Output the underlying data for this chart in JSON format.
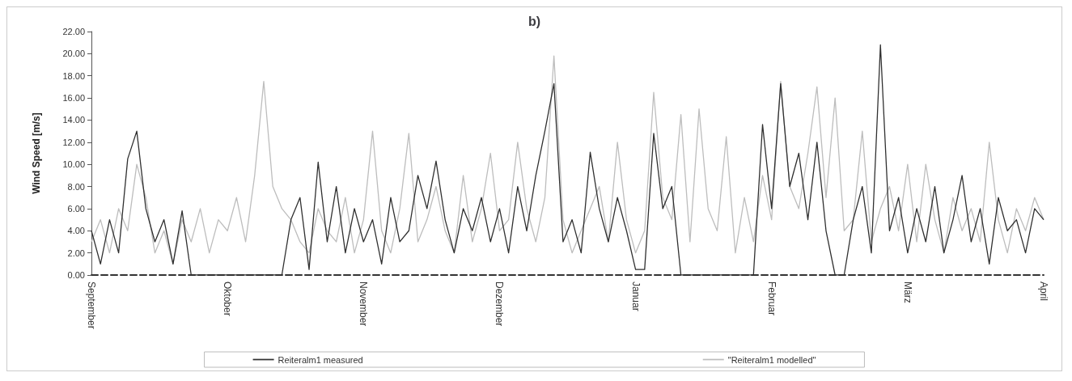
{
  "chart_data": {
    "type": "line",
    "title": "b)",
    "ylabel": "Wind Speed [m/s]",
    "categories": [
      "September",
      null,
      null,
      null,
      null,
      null,
      null,
      null,
      null,
      null,
      null,
      null,
      null,
      null,
      null,
      "Oktober",
      null,
      null,
      null,
      null,
      null,
      null,
      null,
      null,
      null,
      null,
      null,
      null,
      null,
      null,
      "November",
      null,
      null,
      null,
      null,
      null,
      null,
      null,
      null,
      null,
      null,
      null,
      null,
      null,
      null,
      "Dezember",
      null,
      null,
      null,
      null,
      null,
      null,
      null,
      null,
      null,
      null,
      null,
      null,
      null,
      null,
      "Januar",
      null,
      null,
      null,
      null,
      null,
      null,
      null,
      null,
      null,
      null,
      null,
      null,
      null,
      null,
      "Februar",
      null,
      null,
      null,
      null,
      null,
      null,
      null,
      null,
      null,
      null,
      null,
      null,
      null,
      null,
      "März",
      null,
      null,
      null,
      null,
      null,
      null,
      null,
      null,
      null,
      null,
      null,
      null,
      null,
      null,
      "April"
    ],
    "series": [
      {
        "name": "Reiteralm1 measured",
        "color": "#303030",
        "values": [
          4,
          1,
          5,
          2,
          10.5,
          13,
          6,
          3,
          5,
          1,
          5.8,
          0,
          0,
          0,
          0,
          0,
          0,
          0,
          0,
          0,
          0,
          0,
          5,
          7,
          0.5,
          10.2,
          3,
          8,
          2,
          6,
          3,
          5,
          1,
          7,
          3,
          4,
          9,
          6,
          10.3,
          5,
          2,
          6,
          4,
          7,
          3,
          6,
          2,
          8,
          4,
          9,
          13,
          17.3,
          3,
          5,
          2,
          11.1,
          6,
          3,
          7,
          4,
          0.5,
          0.5,
          12.8,
          6,
          8,
          0,
          0,
          0,
          0,
          0,
          0,
          0,
          0,
          0,
          13.6,
          6,
          17.3,
          8,
          11,
          5,
          12,
          4,
          0,
          0,
          5,
          8,
          2,
          20.8,
          4,
          7,
          2,
          6,
          3,
          8,
          2,
          5,
          9,
          3,
          6,
          1,
          7,
          4,
          5,
          2,
          6,
          5
        ]
      },
      {
        "name": "\"Reiteralm1 modelled\"",
        "color": "#bdbdbd",
        "values": [
          3,
          5,
          2,
          6,
          4,
          10,
          7,
          2,
          4,
          1,
          5,
          3,
          6,
          2,
          5,
          4,
          7,
          3,
          9,
          17.5,
          8,
          6,
          5,
          3,
          2,
          6,
          4,
          3,
          7,
          2,
          5,
          13,
          4,
          2,
          6,
          12.8,
          3,
          5,
          8,
          4,
          2,
          9,
          3,
          6,
          11,
          4,
          5,
          12,
          6,
          3,
          7,
          19.8,
          5,
          2,
          4,
          6,
          8,
          3,
          12,
          5,
          2,
          4,
          16.5,
          7,
          5,
          14.5,
          3,
          15,
          6,
          4,
          12.5,
          2,
          7,
          3,
          9,
          5,
          17.5,
          8,
          6,
          11,
          17,
          7,
          16,
          4,
          5,
          13,
          3,
          6,
          8,
          4,
          10,
          3,
          10,
          5,
          2,
          7,
          4,
          6,
          3,
          12,
          5,
          2,
          6,
          4,
          7,
          5
        ]
      }
    ],
    "ylim": [
      0,
      22
    ],
    "yticks": [
      {
        "value": 0,
        "label": "0.00"
      },
      {
        "value": 2,
        "label": "2.00"
      },
      {
        "value": 4,
        "label": "4.00"
      },
      {
        "value": 6,
        "label": "6.00"
      },
      {
        "value": 8,
        "label": "8.00"
      },
      {
        "value": 10,
        "label": "10.00"
      },
      {
        "value": 12,
        "label": "12.00"
      },
      {
        "value": 14,
        "label": "14.00"
      },
      {
        "value": 16,
        "label": "16.00"
      },
      {
        "value": 18,
        "label": "18.00"
      },
      {
        "value": 20,
        "label": "20.00"
      },
      {
        "value": 22,
        "label": "22.00"
      }
    ],
    "grid": false,
    "legend": "bottom",
    "marker": "none",
    "line_style": "solid"
  }
}
